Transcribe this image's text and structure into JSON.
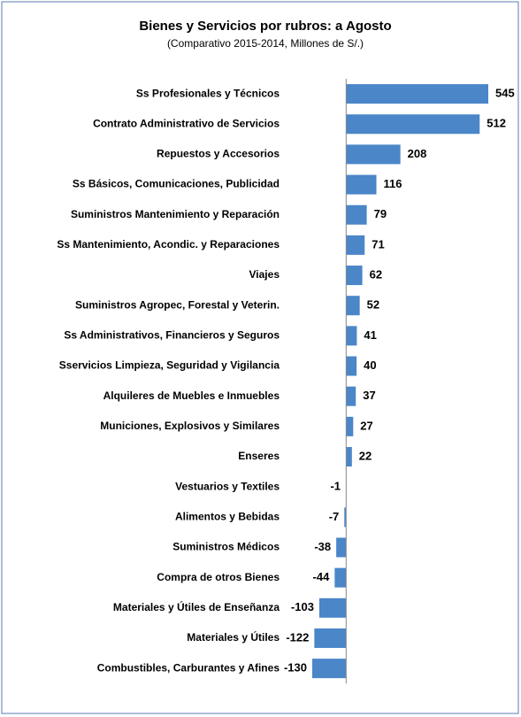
{
  "chart_data": {
    "type": "bar",
    "orientation": "horizontal",
    "title": "Bienes y Servicios por rubros: a Agosto",
    "subtitle": "(Comparativo 2015-2014,  Millones de S/.)",
    "categories": [
      "Ss Profesionales y Técnicos",
      "Contrato Administrativo de Servicios",
      "Repuestos y Accesorios",
      "Ss Básicos, Comunicaciones, Publicidad",
      "Suministros Mantenimiento y Reparación",
      "Ss Mantenimiento, Acondic. y  Reparaciones",
      "Viajes",
      "Suministros Agropec, Forestal y Veterin.",
      "Ss Administrativos, Financieros y Seguros",
      "Sservicios Limpieza, Seguridad y Vigilancia",
      "Alquileres de Muebles e Inmuebles",
      "Municiones,  Explosivos y Similares",
      "Enseres",
      "Vestuarios y Textiles",
      "Alimentos y Bebidas",
      "Suministros Médicos",
      "Compra de otros Bienes",
      "Materiales y Útiles de Enseñanza",
      "Materiales y  Útiles",
      "Combustibles, Carburantes y Afines"
    ],
    "values": [
      545,
      512,
      208,
      116,
      79,
      71,
      62,
      52,
      41,
      40,
      37,
      27,
      22,
      -1,
      -7,
      -38,
      -44,
      -103,
      -122,
      -130
    ],
    "color": "#4a86c8",
    "xlim": [
      -130,
      545
    ]
  }
}
